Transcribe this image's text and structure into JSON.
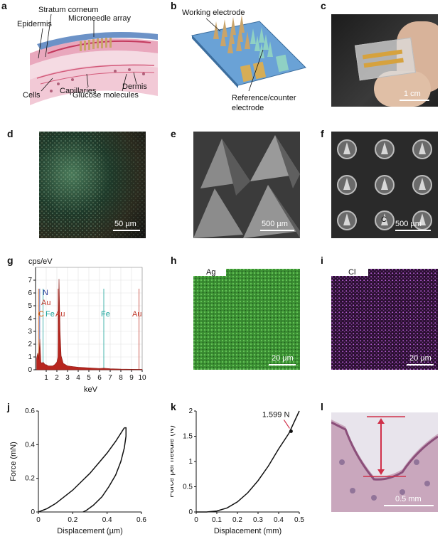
{
  "panel_labels": [
    "a",
    "b",
    "c",
    "d",
    "e",
    "f",
    "g",
    "h",
    "i",
    "j",
    "k",
    "l"
  ],
  "panel_a": {
    "labels": {
      "stratum_corneum": "Stratum corneum",
      "epidermis": "Epidermis",
      "microneedle_array": "Microneedle array",
      "cells": "Cells",
      "capillaries": "Capillaries",
      "dermis": "Dermis",
      "glucose": "Glucose molecules"
    }
  },
  "panel_b": {
    "labels": {
      "working": "Working electrode",
      "reference": "Reference/counter",
      "reference2": "electrode"
    }
  },
  "panel_c": {
    "scale": "1 cm"
  },
  "panel_d": {
    "scale": "50 µm"
  },
  "panel_e": {
    "scale": "500 µm"
  },
  "panel_f": {
    "scale": "500 µm",
    "marker": "C"
  },
  "panel_g": {
    "ylabel": "cps/eV",
    "xlabel": "keV",
    "element_labels": [
      {
        "text": "N",
        "color": "#2a3b9c"
      },
      {
        "text": "Au",
        "color": "#c0392b"
      },
      {
        "text": "C",
        "color": "#d35400"
      },
      {
        "text": "Fe",
        "color": "#1aa39a"
      },
      {
        "text": "Au",
        "color": "#c0392b"
      },
      {
        "text": "Fe",
        "color": "#1aa39a"
      },
      {
        "text": "Au",
        "color": "#c0392b"
      }
    ]
  },
  "panel_h": {
    "element": "Ag",
    "scale": "20 µm"
  },
  "panel_i": {
    "element": "Cl",
    "scale": "20 µm"
  },
  "panel_l": {
    "scale": "0.5 mm"
  },
  "chart_data": [
    {
      "id": "g",
      "type": "area",
      "title": "",
      "xlabel": "keV",
      "ylabel": "cps/eV",
      "xlim": [
        0,
        10
      ],
      "ylim": [
        0,
        8
      ],
      "xticks": [
        1,
        2,
        3,
        4,
        5,
        6,
        7,
        8,
        9,
        10
      ],
      "yticks": [
        0,
        1,
        2,
        3,
        4,
        5,
        6,
        7
      ],
      "grid": true,
      "x": [
        0.1,
        0.2,
        0.3,
        0.4,
        0.5,
        0.6,
        0.7,
        0.8,
        0.9,
        1.0,
        1.2,
        1.4,
        1.6,
        1.8,
        2.0,
        2.1,
        2.2,
        2.3,
        2.4,
        2.6,
        2.8,
        3.0,
        3.5,
        4.0,
        5.0,
        6.0,
        6.4,
        7.0,
        8.0,
        9.0,
        10.0
      ],
      "y": [
        0.9,
        1.3,
        0.8,
        2.4,
        0.6,
        0.5,
        0.6,
        0.5,
        0.4,
        0.4,
        0.3,
        0.3,
        0.3,
        0.4,
        0.6,
        1.0,
        7.1,
        3.0,
        1.1,
        0.5,
        0.4,
        0.3,
        0.25,
        0.2,
        0.15,
        0.1,
        0.12,
        0.08,
        0.05,
        0.04,
        0.03
      ],
      "peak_lines": [
        {
          "x": 0.28,
          "color": "#d35400"
        },
        {
          "x": 0.39,
          "color": "#2a3b9c"
        },
        {
          "x": 0.71,
          "color": "#1aa39a"
        },
        {
          "x": 2.12,
          "color": "#c0392b"
        },
        {
          "x": 6.4,
          "color": "#1aa39a"
        },
        {
          "x": 9.71,
          "color": "#c0392b"
        }
      ]
    },
    {
      "id": "j",
      "type": "line",
      "title": "",
      "xlabel": "Displacement (µm)",
      "ylabel": "Force (mN)",
      "xlim": [
        0,
        0.6
      ],
      "ylim": [
        0,
        0.6
      ],
      "xticks": [
        0,
        0.2,
        0.4,
        0.6
      ],
      "yticks": [
        0,
        0.2,
        0.4,
        0.6
      ],
      "series": [
        {
          "x": [
            0,
            0.05,
            0.1,
            0.15,
            0.2,
            0.25,
            0.3,
            0.35,
            0.4,
            0.45,
            0.5
          ],
          "y": [
            0,
            0.02,
            0.05,
            0.09,
            0.13,
            0.18,
            0.23,
            0.29,
            0.35,
            0.42,
            0.5
          ]
        },
        {
          "x": [
            0.5,
            0.51,
            0.51,
            0.5,
            0.48,
            0.45,
            0.41,
            0.37,
            0.32,
            0.28,
            0.26
          ],
          "y": [
            0.5,
            0.5,
            0.45,
            0.38,
            0.3,
            0.22,
            0.15,
            0.09,
            0.04,
            0.01,
            0
          ]
        }
      ]
    },
    {
      "id": "k",
      "type": "line",
      "title": "",
      "xlabel": "Displacement (mm)",
      "ylabel": "Force per needle (N)",
      "xlim": [
        0,
        0.5
      ],
      "ylim": [
        0,
        2.0
      ],
      "xticks": [
        0,
        0.1,
        0.2,
        0.3,
        0.4,
        0.5
      ],
      "yticks": [
        0,
        0.5,
        1.0,
        1.5,
        2.0
      ],
      "series": [
        {
          "x": [
            0,
            0.05,
            0.1,
            0.15,
            0.2,
            0.25,
            0.3,
            0.35,
            0.4,
            0.45,
            0.5
          ],
          "y": [
            0,
            0,
            0.02,
            0.08,
            0.2,
            0.38,
            0.62,
            0.91,
            1.25,
            1.56,
            2.0
          ]
        }
      ],
      "annotation": {
        "text": "1.599 N",
        "x": 0.46,
        "y": 1.599
      }
    }
  ],
  "colors": {
    "accent_red": "#d0304a",
    "ag_green": "#3fa83a",
    "cl_purple": "#8a3fa8"
  }
}
